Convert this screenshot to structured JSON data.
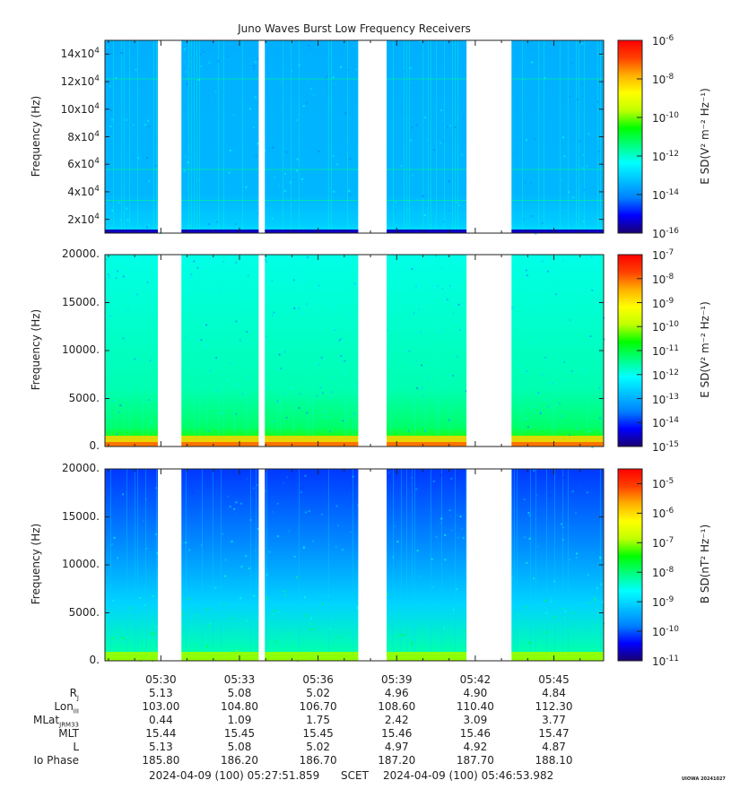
{
  "title": "Juno Waves Burst Low Frequency Receivers",
  "colors": {
    "spectrogram_scale": [
      "#1a0070",
      "#0000ff",
      "#0080ff",
      "#00c0ff",
      "#00ffff",
      "#00ff80",
      "#00ff00",
      "#c0ff00",
      "#ffff00",
      "#ffb000",
      "#ff4000",
      "#ff0000"
    ],
    "gap": "#ffffff"
  },
  "chart_data": [
    {
      "type": "heatmap",
      "panel": "E-field upper band",
      "ylabel": "Frequency (Hz)",
      "ylim": [
        10000,
        150000
      ],
      "yticks": [
        {
          "value": 20000,
          "mant": "2x10",
          "exp": "4"
        },
        {
          "value": 40000,
          "mant": "4x10",
          "exp": "4"
        },
        {
          "value": 60000,
          "mant": "6x10",
          "exp": "4"
        },
        {
          "value": 80000,
          "mant": "8x10",
          "exp": "4"
        },
        {
          "value": 100000,
          "mant": "10x10",
          "exp": "4"
        },
        {
          "value": 120000,
          "mant": "12x10",
          "exp": "4"
        },
        {
          "value": 140000,
          "mant": "14x10",
          "exp": "4"
        }
      ],
      "colorbar": {
        "label": "E SD(V² m⁻² Hz⁻¹)",
        "scale": "log",
        "range": [
          -16,
          -6
        ],
        "ticks": [
          {
            "value": -16,
            "text": "10",
            "exp": "-16"
          },
          {
            "value": -14,
            "text": "10",
            "exp": "-14"
          },
          {
            "value": -12,
            "text": "10",
            "exp": "-12"
          },
          {
            "value": -10,
            "text": "10",
            "exp": "-10"
          },
          {
            "value": -8,
            "text": "10",
            "exp": "-8"
          },
          {
            "value": -6,
            "text": "10",
            "exp": "-6"
          }
        ]
      }
    },
    {
      "type": "heatmap",
      "panel": "E-field lower band",
      "ylabel": "Frequency (Hz)",
      "ylim": [
        0,
        20000
      ],
      "yticks": [
        {
          "value": 0,
          "text": "0."
        },
        {
          "value": 5000,
          "text": "5000."
        },
        {
          "value": 10000,
          "text": "10000."
        },
        {
          "value": 15000,
          "text": "15000."
        },
        {
          "value": 20000,
          "text": "20000."
        }
      ],
      "colorbar": {
        "label": "E SD(V² m⁻² Hz⁻¹)",
        "scale": "log",
        "range": [
          -15,
          -7
        ],
        "ticks": [
          {
            "value": -15,
            "text": "10",
            "exp": "-15"
          },
          {
            "value": -14,
            "text": "10",
            "exp": "-14"
          },
          {
            "value": -13,
            "text": "10",
            "exp": "-13"
          },
          {
            "value": -12,
            "text": "10",
            "exp": "-12"
          },
          {
            "value": -11,
            "text": "10",
            "exp": "-11"
          },
          {
            "value": -10,
            "text": "10",
            "exp": "-10"
          },
          {
            "value": -9,
            "text": "10",
            "exp": "-9"
          },
          {
            "value": -8,
            "text": "10",
            "exp": "-8"
          },
          {
            "value": -7,
            "text": "10",
            "exp": "-7"
          }
        ]
      }
    },
    {
      "type": "heatmap",
      "panel": "B-field",
      "ylabel": "Frequency (Hz)",
      "ylim": [
        0,
        20000
      ],
      "yticks": [
        {
          "value": 0,
          "text": "0."
        },
        {
          "value": 5000,
          "text": "5000."
        },
        {
          "value": 10000,
          "text": "10000."
        },
        {
          "value": 15000,
          "text": "15000."
        },
        {
          "value": 20000,
          "text": "20000."
        }
      ],
      "colorbar": {
        "label": "B SD(nT² Hz⁻¹)",
        "scale": "log",
        "range": [
          -11,
          -4.5
        ],
        "ticks": [
          {
            "value": -11,
            "text": "10",
            "exp": "-11"
          },
          {
            "value": -10,
            "text": "10",
            "exp": "-10"
          },
          {
            "value": -9,
            "text": "10",
            "exp": "-9"
          },
          {
            "value": -8,
            "text": "10",
            "exp": "-8"
          },
          {
            "value": -7,
            "text": "10",
            "exp": "-7"
          },
          {
            "value": -6,
            "text": "10",
            "exp": "-6"
          },
          {
            "value": -5,
            "text": "10",
            "exp": "-5"
          }
        ]
      }
    }
  ],
  "time_axis": {
    "start": "2024-04-09 05:27:51.859",
    "end": "2024-04-09 05:46:53.982",
    "tick_labels": [
      "05:30",
      "05:33",
      "05:36",
      "05:39",
      "05:42",
      "05:45"
    ],
    "data_gaps": [
      {
        "start": "05:29:53",
        "end": "05:30:47"
      },
      {
        "start": "05:33:44",
        "end": "05:33:58"
      },
      {
        "start": "05:37:32",
        "end": "05:38:37"
      },
      {
        "start": "05:41:40",
        "end": "05:43:23"
      }
    ]
  },
  "ephemeris": {
    "rows": [
      {
        "name": "R",
        "sub": "J",
        "values": [
          "5.13",
          "5.08",
          "5.02",
          "4.96",
          "4.90",
          "4.84"
        ]
      },
      {
        "name": "Lon",
        "sub": "III",
        "values": [
          "103.00",
          "104.80",
          "106.70",
          "108.60",
          "110.40",
          "112.30"
        ]
      },
      {
        "name": "MLat",
        "sub": "JRM33",
        "values": [
          "0.44",
          "1.09",
          "1.75",
          "2.42",
          "3.09",
          "3.77"
        ]
      },
      {
        "name": "MLT",
        "sub": "",
        "values": [
          "15.44",
          "15.45",
          "15.45",
          "15.46",
          "15.46",
          "15.47"
        ]
      },
      {
        "name": "L",
        "sub": "",
        "values": [
          "5.13",
          "5.08",
          "5.02",
          "4.97",
          "4.92",
          "4.87"
        ]
      },
      {
        "name": "Io Phase",
        "sub": "",
        "values": [
          "185.80",
          "186.20",
          "186.70",
          "187.20",
          "187.70",
          "188.10"
        ]
      }
    ]
  },
  "footer": {
    "start_text": "2024-04-09 (100) 05:27:51.859",
    "scet": "SCET",
    "end_text": "2024-04-09 (100) 05:46:53.982",
    "stamp": "UIOWA 20241027"
  }
}
